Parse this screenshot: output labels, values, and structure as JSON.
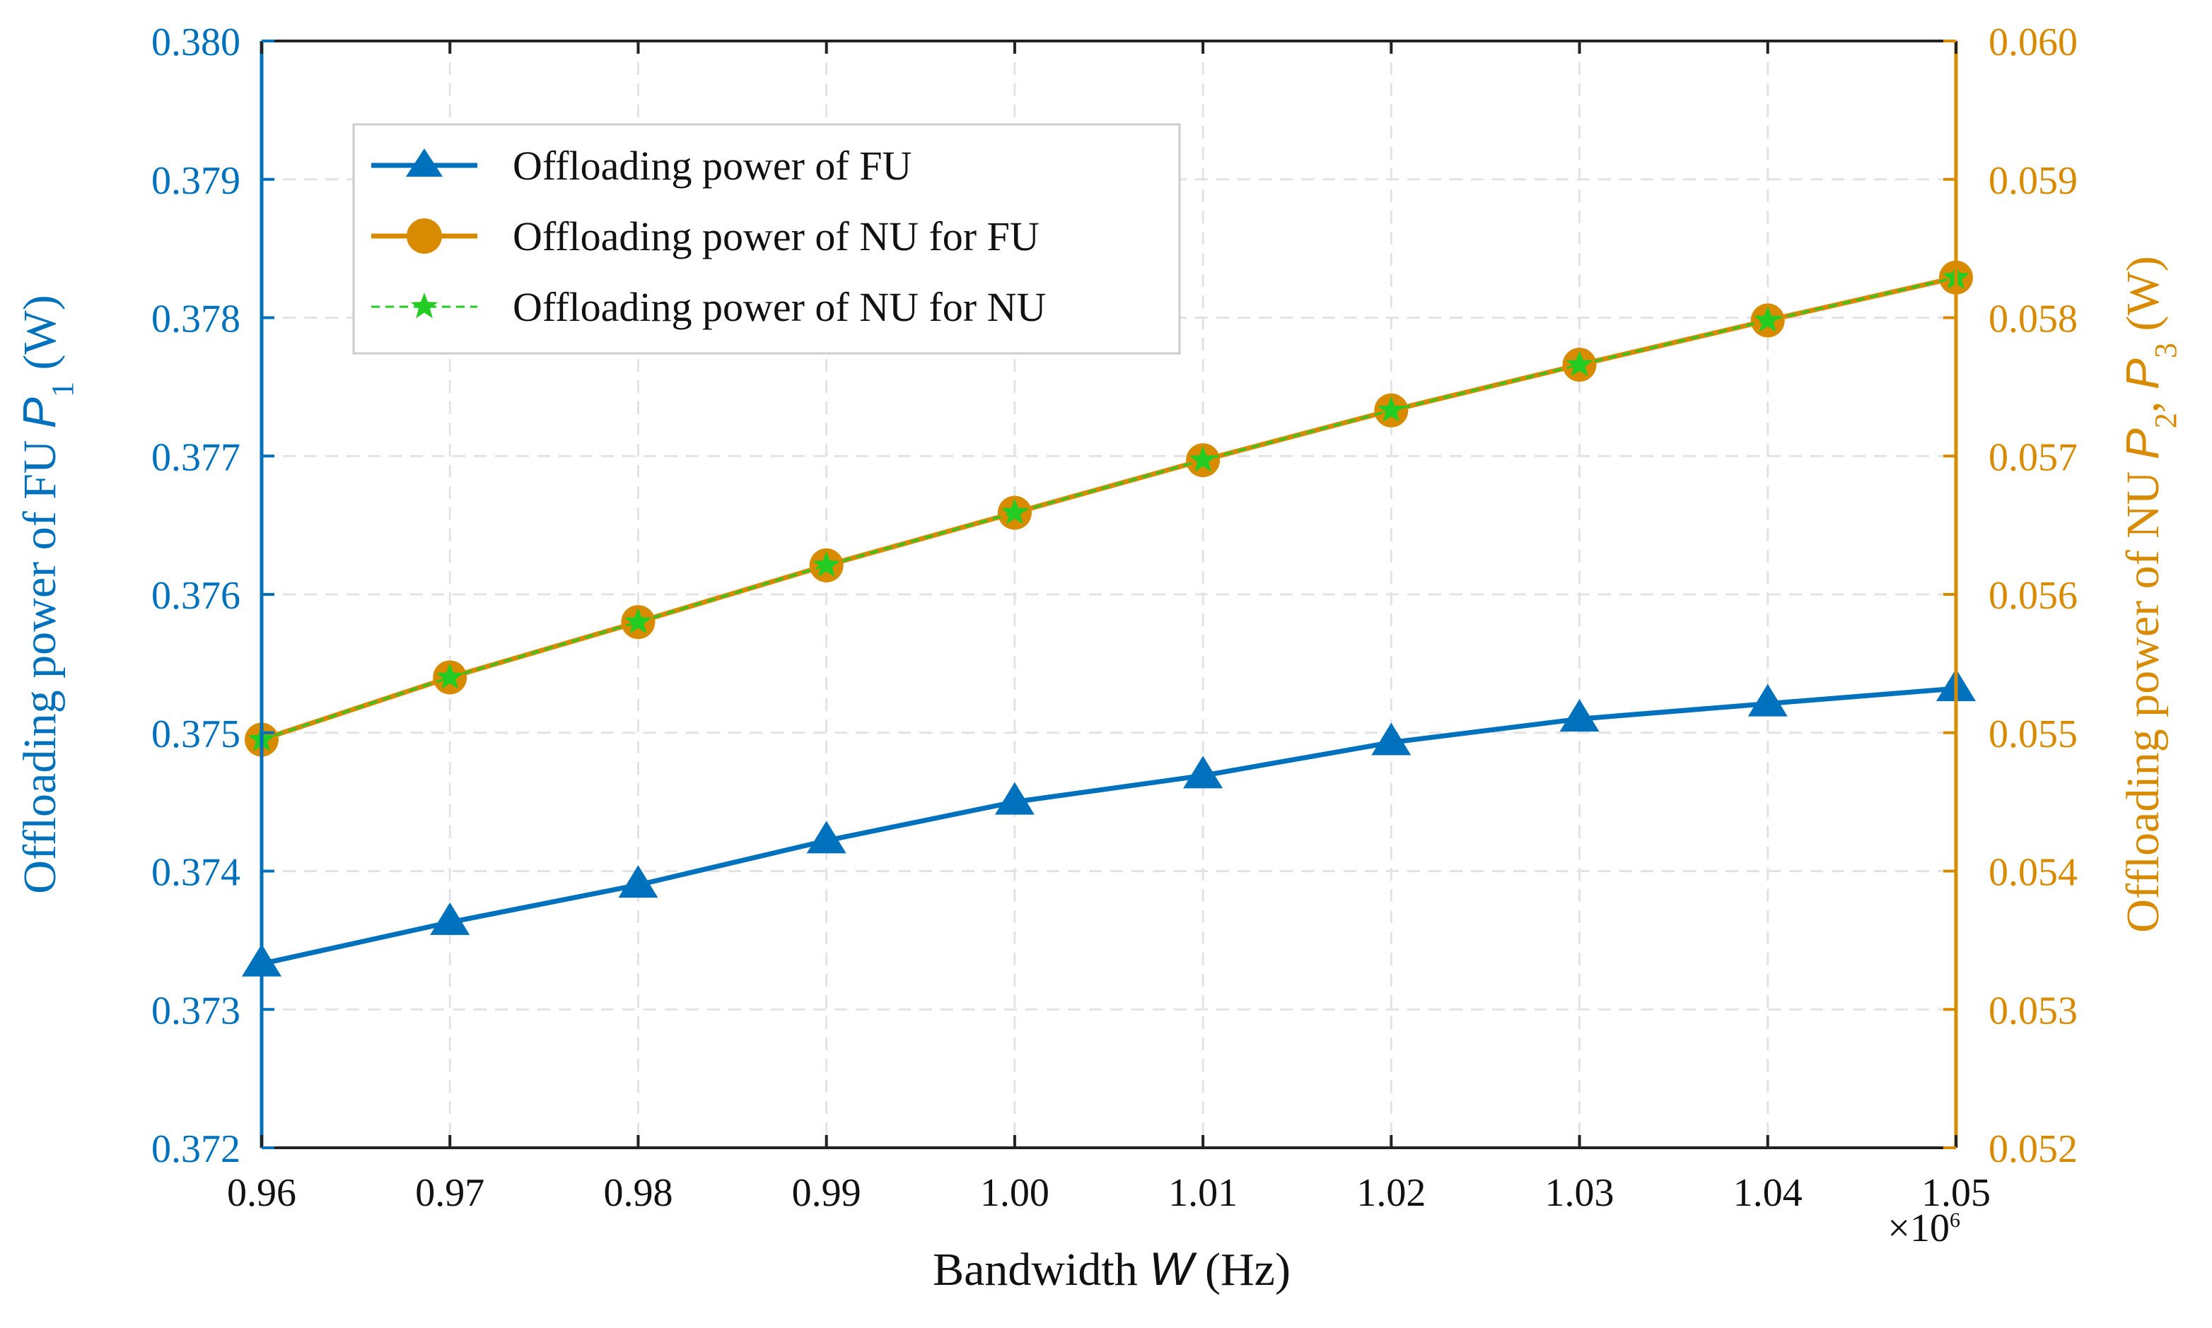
{
  "chart_data": {
    "type": "line",
    "title": "",
    "x": [
      0.96,
      0.97,
      0.98,
      0.99,
      1.0,
      1.01,
      1.02,
      1.03,
      1.04,
      1.05
    ],
    "xlim": [
      0.96,
      1.05
    ],
    "xticks": [
      "0.96",
      "0.97",
      "0.98",
      "0.99",
      "1.00",
      "1.01",
      "1.02",
      "1.03",
      "1.04",
      "1.05"
    ],
    "xlabel": {
      "prefix": "Bandwidth ",
      "var": "W",
      "suffix": " (Hz)"
    },
    "x_multiplier": {
      "base": "×10",
      "exp": "6"
    },
    "ylabel_left": {
      "prefix": "Offloading power of FU ",
      "var": "P",
      "sub": "1",
      "suffix": " (W)"
    },
    "ylabel_right": {
      "prefix": "Offloading power of NU ",
      "var1": "P",
      "sub1": "2",
      "sep": ", ",
      "var2": "P",
      "sub2": "3",
      "suffix": " (W)"
    },
    "ylim_left": [
      0.372,
      0.38
    ],
    "yticks_left": [
      "0.372",
      "0.373",
      "0.374",
      "0.375",
      "0.376",
      "0.377",
      "0.378",
      "0.379",
      "0.380"
    ],
    "ylim_right": [
      0.052,
      0.06
    ],
    "yticks_right": [
      "0.052",
      "0.053",
      "0.054",
      "0.055",
      "0.056",
      "0.057",
      "0.058",
      "0.059",
      "0.060"
    ],
    "grid": true,
    "legend_position": "top-left",
    "series": [
      {
        "name": "Offloading power of FU",
        "axis": "left",
        "color": "#0072BD",
        "marker": "triangle",
        "dash": "solid",
        "values": [
          0.37333,
          0.37363,
          0.3739,
          0.37422,
          0.3745,
          0.37469,
          0.37493,
          0.3751,
          0.37521,
          0.37532
        ]
      },
      {
        "name": "Offloading power of NU for FU",
        "axis": "right",
        "color": "#D98B00",
        "marker": "circle",
        "dash": "solid",
        "values": [
          0.05495,
          0.0554,
          0.0558,
          0.05621,
          0.05659,
          0.05697,
          0.05733,
          0.05766,
          0.05798,
          0.05829
        ]
      },
      {
        "name": "Offloading power of NU for NU",
        "axis": "right",
        "color": "#22CC22",
        "marker": "star",
        "dash": "dashed",
        "values": [
          0.05495,
          0.0554,
          0.0558,
          0.05621,
          0.05659,
          0.05697,
          0.05733,
          0.05766,
          0.05798,
          0.05829
        ]
      }
    ],
    "left_axis_color": "#0072BD",
    "right_axis_color": "#D98B00"
  }
}
